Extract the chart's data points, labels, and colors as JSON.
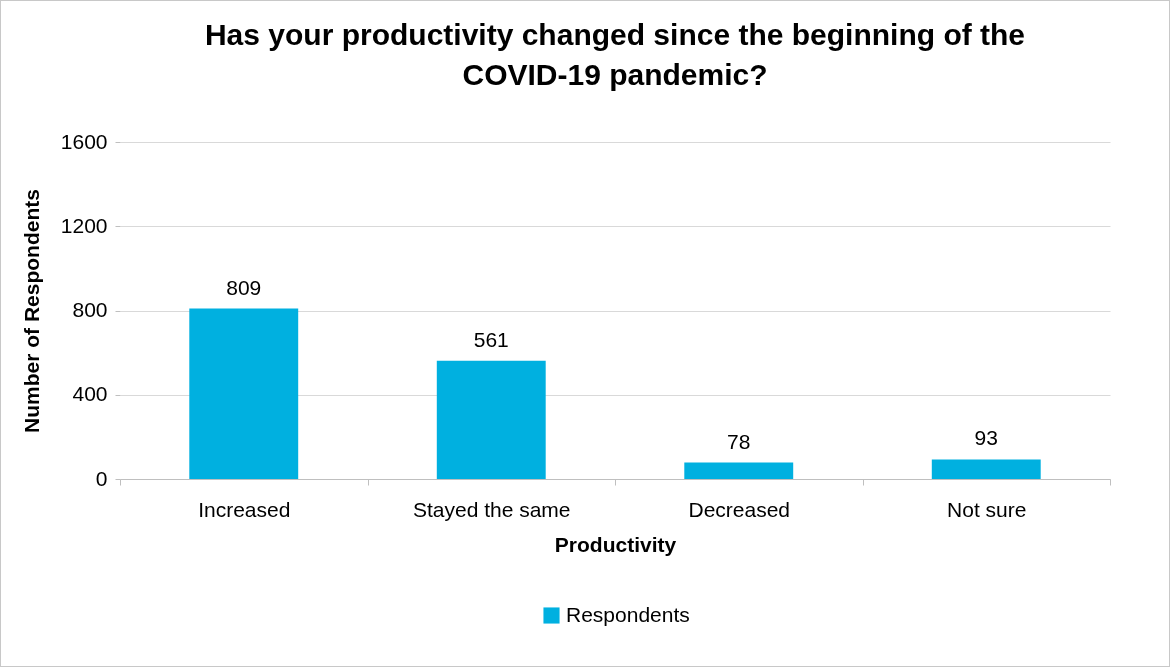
{
  "chart_data": {
    "type": "bar",
    "title": "Has your productivity changed since the beginning of the COVID-19 pandemic?",
    "xlabel": "Productivity",
    "ylabel": "Number of Respondents",
    "categories": [
      "Increased",
      "Stayed the same",
      "Decreased",
      "Not sure"
    ],
    "series": [
      {
        "name": "Respondents",
        "color": "#00b0e0",
        "values": [
          809,
          561,
          78,
          93
        ]
      }
    ],
    "ylim": [
      0,
      1600
    ],
    "yticks": [
      0,
      400,
      800,
      1200,
      1600
    ],
    "grid": "y",
    "legend": "bottom",
    "data_labels": true
  }
}
